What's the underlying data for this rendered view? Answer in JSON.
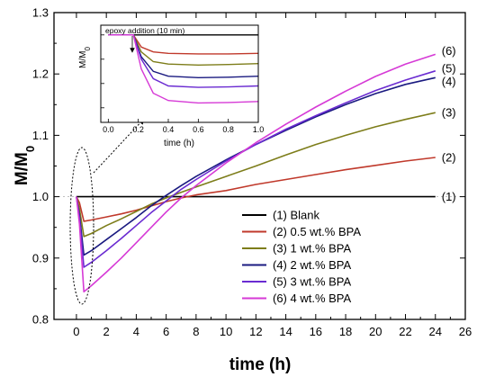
{
  "chart_data": {
    "type": "line",
    "ylabel": "M/M0",
    "xlabel": "time (h)",
    "xlim": [
      -1.5,
      26
    ],
    "ylim": [
      0.8,
      1.3
    ],
    "xticks": [
      0,
      2,
      4,
      6,
      8,
      10,
      12,
      14,
      16,
      18,
      20,
      22,
      24,
      26
    ],
    "yticks": [
      0.8,
      0.9,
      1.0,
      1.1,
      1.2,
      1.3
    ],
    "legend_position": "center-right",
    "series": [
      {
        "name": "(1) Blank",
        "label": "(1)",
        "color": "#000000",
        "x": [
          0,
          0.5,
          2,
          4,
          6,
          8,
          10,
          12,
          14,
          16,
          18,
          20,
          22,
          24
        ],
        "y": [
          1.0,
          1.0,
          1.0,
          1.0,
          1.0,
          1.0,
          1.0,
          1.0,
          1.0,
          1.0,
          1.0,
          1.0,
          1.0,
          1.0
        ]
      },
      {
        "name": "(2) 0.5 wt.% BPA",
        "label": "(2)",
        "color": "#c0392b",
        "x": [
          0,
          0.2,
          0.5,
          1,
          2,
          3,
          4,
          5,
          6,
          7,
          8,
          10,
          12,
          14,
          16,
          18,
          20,
          22,
          24
        ],
        "y": [
          1.0,
          0.99,
          0.96,
          0.962,
          0.967,
          0.972,
          0.978,
          0.985,
          0.992,
          0.998,
          1.003,
          1.01,
          1.02,
          1.028,
          1.036,
          1.044,
          1.051,
          1.058,
          1.064
        ]
      },
      {
        "name": "(3) 1 wt.% BPA",
        "label": "(3)",
        "color": "#7d7d1a",
        "x": [
          0,
          0.2,
          0.5,
          1,
          2,
          3,
          4,
          5,
          6,
          7,
          8,
          10,
          12,
          14,
          16,
          18,
          20,
          22,
          24
        ],
        "y": [
          1.0,
          0.98,
          0.935,
          0.94,
          0.953,
          0.964,
          0.976,
          0.988,
          0.998,
          1.007,
          1.016,
          1.033,
          1.05,
          1.068,
          1.085,
          1.1,
          1.114,
          1.126,
          1.137
        ]
      },
      {
        "name": "(4) 2 wt.% BPA",
        "label": "(4)",
        "color": "#1a1a80",
        "x": [
          0,
          0.2,
          0.5,
          1,
          2,
          3,
          4,
          5,
          6,
          7,
          8,
          10,
          12,
          14,
          16,
          18,
          20,
          22,
          24
        ],
        "y": [
          1.0,
          0.97,
          0.905,
          0.912,
          0.93,
          0.948,
          0.966,
          0.985,
          1.002,
          1.018,
          1.033,
          1.06,
          1.085,
          1.108,
          1.13,
          1.15,
          1.168,
          1.183,
          1.194
        ]
      },
      {
        "name": "(5) 3 wt.% BPA",
        "label": "(5)",
        "color": "#6a2bd1",
        "x": [
          0,
          0.2,
          0.5,
          1,
          2,
          3,
          4,
          5,
          6,
          7,
          8,
          10,
          12,
          14,
          16,
          18,
          20,
          22,
          24
        ],
        "y": [
          1.0,
          0.965,
          0.885,
          0.893,
          0.912,
          0.932,
          0.953,
          0.974,
          0.993,
          1.012,
          1.028,
          1.058,
          1.085,
          1.11,
          1.132,
          1.153,
          1.173,
          1.19,
          1.205
        ]
      },
      {
        "name": "(6) 4 wt.% BPA",
        "label": "(6)",
        "color": "#d63ad6",
        "x": [
          0,
          0.2,
          0.5,
          1,
          2,
          3,
          4,
          5,
          6,
          7,
          8,
          10,
          12,
          14,
          16,
          18,
          20,
          22,
          24
        ],
        "y": [
          1.0,
          0.955,
          0.845,
          0.855,
          0.877,
          0.9,
          0.925,
          0.95,
          0.975,
          0.998,
          1.018,
          1.055,
          1.088,
          1.118,
          1.146,
          1.172,
          1.196,
          1.216,
          1.232
        ]
      }
    ],
    "inset": {
      "ylabel": "M/M0",
      "xlabel": "time (h)",
      "annotation": "epoxy addition (10 min)",
      "annotation_x": 0.167,
      "xlim": [
        -0.05,
        1.0
      ],
      "ylim": [
        0.82,
        1.02
      ],
      "xticks": [
        0.0,
        0.2,
        0.4,
        0.6,
        0.8,
        1.0
      ],
      "series": [
        {
          "color": "#000000",
          "x": [
            0,
            0.167,
            0.3,
            0.5,
            0.7,
            1.0
          ],
          "y": [
            1.0,
            1.0,
            1.0,
            1.0,
            1.0,
            1.0
          ]
        },
        {
          "color": "#c0392b",
          "x": [
            0,
            0.167,
            0.22,
            0.3,
            0.4,
            0.6,
            0.8,
            1.0
          ],
          "y": [
            1.0,
            1.0,
            0.975,
            0.965,
            0.962,
            0.961,
            0.961,
            0.962
          ]
        },
        {
          "color": "#7d7d1a",
          "x": [
            0,
            0.167,
            0.22,
            0.3,
            0.4,
            0.6,
            0.8,
            1.0
          ],
          "y": [
            1.0,
            1.0,
            0.965,
            0.945,
            0.94,
            0.938,
            0.939,
            0.941
          ]
        },
        {
          "color": "#1a1a80",
          "x": [
            0,
            0.167,
            0.22,
            0.3,
            0.4,
            0.6,
            0.8,
            1.0
          ],
          "y": [
            1.0,
            1.0,
            0.955,
            0.925,
            0.915,
            0.912,
            0.913,
            0.915
          ]
        },
        {
          "color": "#6a2bd1",
          "x": [
            0,
            0.167,
            0.22,
            0.3,
            0.4,
            0.6,
            0.8,
            1.0
          ],
          "y": [
            1.0,
            1.0,
            0.95,
            0.91,
            0.895,
            0.892,
            0.893,
            0.895
          ]
        },
        {
          "color": "#d63ad6",
          "x": [
            0,
            0.167,
            0.22,
            0.3,
            0.4,
            0.6,
            0.8,
            1.0
          ],
          "y": [
            1.0,
            1.0,
            0.93,
            0.88,
            0.865,
            0.86,
            0.861,
            0.863
          ]
        }
      ]
    }
  }
}
